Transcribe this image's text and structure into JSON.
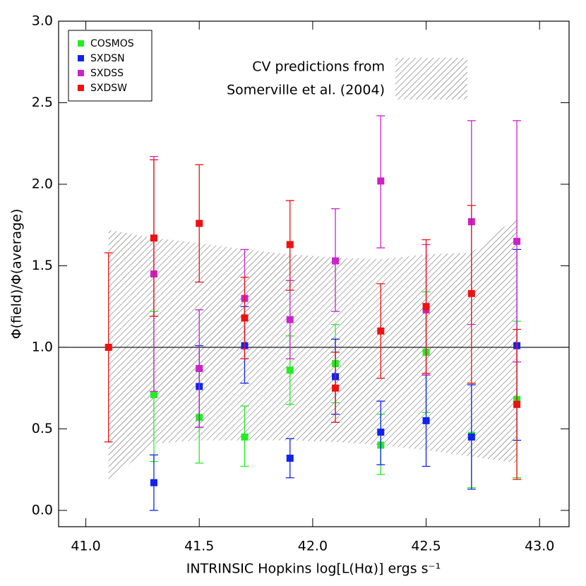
{
  "chart_data": {
    "type": "errorbar",
    "ylabel": "Φ(field)/Φ(average)",
    "xlabel": "INTRINSIC Hopkins log[L(Hα)] ergs s⁻¹",
    "xlim": [
      40.88,
      43.13
    ],
    "ylim": [
      -0.1,
      3.0
    ],
    "xticks": [
      {
        "value": 41,
        "label": "41.0"
      },
      41.5,
      {
        "value": 42,
        "label": "42.0"
      },
      42.5,
      {
        "value": 43,
        "label": "43.0"
      }
    ],
    "yticks": [
      {
        "value": 0,
        "label": "0.0"
      },
      0.5,
      {
        "value": 1,
        "label": "1.0"
      },
      1.5,
      {
        "value": 2,
        "label": "2.0"
      },
      2.5,
      {
        "value": 3,
        "label": "3.0"
      }
    ],
    "hline": 1,
    "band": {
      "label": [
        "CV predictions from",
        "Somerville et al. (2004)"
      ],
      "x": [
        41.1,
        41.3,
        41.5,
        41.7,
        41.9,
        42.1,
        42.3,
        42.5,
        42.7,
        42.9
      ],
      "upper": [
        1.72,
        1.67,
        1.64,
        1.6,
        1.57,
        1.55,
        1.54,
        1.57,
        1.58,
        1.8
      ],
      "lower": [
        0.18,
        0.41,
        0.43,
        0.43,
        0.43,
        0.42,
        0.4,
        0.37,
        0.33,
        0.29
      ]
    },
    "series": [
      {
        "name": "COSMOS",
        "color": "#22ee22",
        "x": [
          41.3,
          41.5,
          41.7,
          41.9,
          42.1,
          42.3,
          42.5,
          42.7,
          42.9
        ],
        "values": [
          0.71,
          0.57,
          0.45,
          0.86,
          0.9,
          0.4,
          0.97,
          0.46,
          0.68
        ],
        "low": [
          0.3,
          0.29,
          0.27,
          0.65,
          0.66,
          0.22,
          0.6,
          0.14,
          0.2
        ],
        "high": [
          1.22,
          0.86,
          0.64,
          1.07,
          1.14,
          0.59,
          1.34,
          0.78,
          1.16
        ]
      },
      {
        "name": "SXDSN",
        "color": "#1122ee",
        "x": [
          41.3,
          41.5,
          41.7,
          41.9,
          42.1,
          42.3,
          42.5,
          42.7,
          42.9
        ],
        "values": [
          0.17,
          0.76,
          1.01,
          0.32,
          0.82,
          0.48,
          0.55,
          0.45,
          1.01
        ],
        "low": [
          0.0,
          0.51,
          0.78,
          0.2,
          0.59,
          0.28,
          0.27,
          0.13,
          0.43
        ],
        "high": [
          0.34,
          1.01,
          1.25,
          0.44,
          1.05,
          0.67,
          0.83,
          0.77,
          1.6
        ]
      },
      {
        "name": "SXDSS",
        "color": "#cc22cc",
        "x": [
          41.3,
          41.5,
          41.7,
          41.9,
          42.1,
          42.3,
          42.5,
          42.7,
          42.9
        ],
        "values": [
          1.45,
          0.87,
          1.3,
          1.17,
          1.53,
          2.02,
          1.23,
          1.77,
          1.65
        ],
        "low": [
          0.73,
          0.51,
          0.99,
          0.93,
          1.22,
          1.61,
          0.83,
          1.14,
          0.91
        ],
        "high": [
          2.17,
          1.23,
          1.6,
          1.41,
          1.85,
          2.42,
          1.63,
          2.39,
          2.39
        ]
      },
      {
        "name": "SXDSW",
        "color": "#ee1111",
        "x": [
          41.1,
          41.3,
          41.5,
          41.7,
          41.9,
          42.1,
          42.3,
          42.5,
          42.7,
          42.9
        ],
        "values": [
          1.0,
          1.67,
          1.76,
          1.18,
          1.63,
          0.75,
          1.1,
          1.25,
          1.33,
          0.65
        ],
        "low": [
          0.42,
          1.19,
          1.4,
          0.93,
          1.35,
          0.54,
          0.81,
          0.84,
          0.78,
          0.19
        ],
        "high": [
          1.58,
          2.15,
          2.12,
          1.43,
          1.9,
          0.97,
          1.39,
          1.66,
          1.87,
          1.11
        ]
      }
    ]
  }
}
